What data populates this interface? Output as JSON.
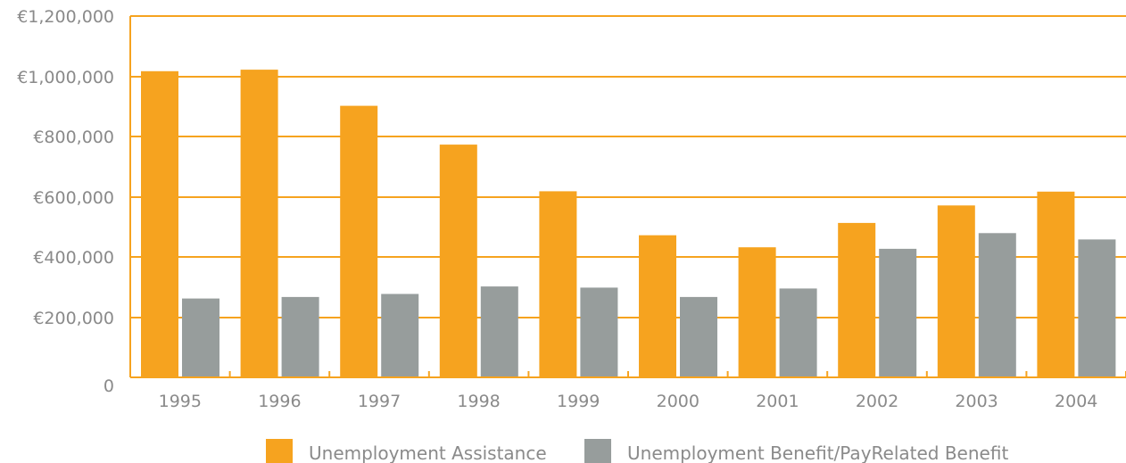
{
  "chart_data": {
    "type": "bar",
    "title": "",
    "xlabel": "",
    "ylabel": "",
    "categories": [
      "1995",
      "1996",
      "1997",
      "1998",
      "1999",
      "2000",
      "2001",
      "2002",
      "2003",
      "2004"
    ],
    "series": [
      {
        "name": "Unemployment Assistance",
        "color": "#f6a31f",
        "values": [
          1017000,
          1022000,
          902000,
          773000,
          618000,
          472000,
          432000,
          513000,
          571000,
          617000
        ]
      },
      {
        "name": "Unemployment Benefit/PayRelated Benefit",
        "color": "#979d9c",
        "values": [
          262000,
          267000,
          277000,
          302000,
          298000,
          267000,
          295000,
          427000,
          479000,
          458000
        ]
      }
    ],
    "ylim": [
      0,
      1200000
    ],
    "yticks": [
      0,
      200000,
      400000,
      600000,
      800000,
      1000000,
      1200000
    ],
    "ytick_labels": [
      "0",
      "€200,000",
      "€400,000",
      "€600,000",
      "€800,000",
      "€1,000,000",
      "€1,200,000"
    ],
    "grid": true,
    "gridline_color": "#f6a31f",
    "legend_position": "bottom"
  }
}
